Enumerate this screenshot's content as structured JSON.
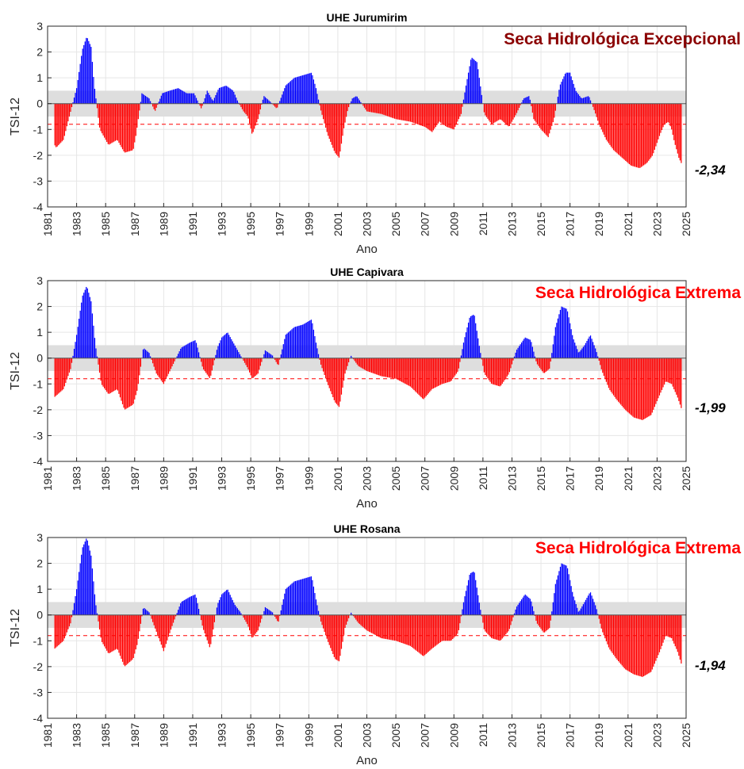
{
  "colors": {
    "positive": "#0000ff",
    "negative": "#ff0000",
    "neutral_band": "#dedede",
    "threshold_line": "#ff0000",
    "label_excepcional": "#8b0000",
    "label_extrema": "#ff0000"
  },
  "chart_data": [
    {
      "type": "bar",
      "title": "UHE Jurumirim",
      "xlabel": "Ano",
      "ylabel": "TSI-12",
      "xlim": [
        1981,
        2025
      ],
      "ylim": [
        -4,
        3
      ],
      "xticks": [
        "1981",
        "1983",
        "1985",
        "1987",
        "1989",
        "1991",
        "1993",
        "1995",
        "1997",
        "1999",
        "2001",
        "2003",
        "2005",
        "2007",
        "2009",
        "2011",
        "2013",
        "2015",
        "2017",
        "2019",
        "2021",
        "2023",
        "2025"
      ],
      "yticks": [
        "3",
        "2",
        "1",
        "0",
        "-1",
        "-2",
        "-3",
        "-4"
      ],
      "grid": true,
      "neutral_band": [
        -0.5,
        0.5
      ],
      "threshold": -0.8,
      "drought_label": "Seca Hidrológica Excepcional",
      "drought_label_color": "#8b0000",
      "final_value_label": "-2,34",
      "series_keyframes": {
        "x": [
          1981.0,
          1981.6,
          1982.1,
          1982.5,
          1983.0,
          1983.4,
          1983.7,
          1984.0,
          1984.2,
          1984.6,
          1985.2,
          1985.8,
          1986.3,
          1986.9,
          1987.1,
          1987.5,
          1988.0,
          1988.4,
          1988.9,
          1989.4,
          1990.0,
          1990.6,
          1991.1,
          1991.6,
          1992.0,
          1992.4,
          1992.8,
          1993.3,
          1993.8,
          1994.1,
          1994.5,
          1994.8,
          1995.1,
          1995.5,
          1995.9,
          1996.3,
          1996.8,
          1997.4,
          1998.0,
          1998.6,
          1999.2,
          1999.5,
          1999.8,
          2000.3,
          2000.8,
          2001.1,
          2001.4,
          2001.7,
          2002.0,
          2002.3,
          2003.0,
          2004.0,
          2005.0,
          2006.0,
          2007.0,
          2007.5,
          2008.0,
          2008.5,
          2009.0,
          2009.5,
          2009.8,
          2010.2,
          2010.6,
          2010.9,
          2011.1,
          2011.6,
          2012.2,
          2012.8,
          2013.3,
          2013.8,
          2014.2,
          2014.5,
          2015.0,
          2015.5,
          2015.9,
          2016.3,
          2016.7,
          2017.0,
          2017.4,
          2017.8,
          2018.3,
          2018.7,
          2019.0,
          2019.5,
          2020.0,
          2020.6,
          2021.2,
          2021.8,
          2022.3,
          2022.7,
          2023.2,
          2023.5,
          2023.8,
          2024.0,
          2024.2,
          2024.5,
          2024.7
        ],
        "y": [
          -1.2,
          -1.7,
          -1.4,
          -0.5,
          0.6,
          2.1,
          2.6,
          2.2,
          0.8,
          -1.0,
          -1.6,
          -1.4,
          -1.9,
          -1.8,
          -1.2,
          0.4,
          0.2,
          -0.3,
          0.4,
          0.5,
          0.6,
          0.4,
          0.4,
          -0.2,
          0.5,
          0.1,
          0.6,
          0.7,
          0.5,
          0.1,
          -0.3,
          -0.5,
          -1.2,
          -0.6,
          0.3,
          0.1,
          -0.2,
          0.7,
          1.0,
          1.1,
          1.2,
          0.6,
          -0.2,
          -1.2,
          -1.9,
          -2.1,
          -1.0,
          -0.2,
          0.2,
          0.3,
          -0.3,
          -0.4,
          -0.6,
          -0.7,
          -0.9,
          -1.1,
          -0.7,
          -0.9,
          -1.0,
          -0.4,
          0.6,
          1.8,
          1.6,
          0.4,
          -0.4,
          -0.8,
          -0.6,
          -0.9,
          -0.4,
          0.2,
          0.3,
          -0.6,
          -1.0,
          -1.3,
          -0.6,
          0.7,
          1.2,
          1.2,
          0.5,
          0.2,
          0.3,
          -0.3,
          -0.8,
          -1.4,
          -1.8,
          -2.1,
          -2.4,
          -2.5,
          -2.3,
          -2.0,
          -1.2,
          -0.8,
          -0.7,
          -1.0,
          -1.5,
          -2.1,
          -2.34
        ]
      }
    },
    {
      "type": "bar",
      "title": "UHE Capivara",
      "xlabel": "Ano",
      "ylabel": "TSI-12",
      "xlim": [
        1981,
        2025
      ],
      "ylim": [
        -4,
        3
      ],
      "xticks": [
        "1981",
        "1983",
        "1985",
        "1987",
        "1989",
        "1991",
        "1993",
        "1995",
        "1997",
        "1999",
        "2001",
        "2003",
        "2005",
        "2007",
        "2009",
        "2011",
        "2013",
        "2015",
        "2017",
        "2019",
        "2021",
        "2023",
        "2025"
      ],
      "yticks": [
        "3",
        "2",
        "1",
        "0",
        "-1",
        "-2",
        "-3",
        "-4"
      ],
      "grid": true,
      "neutral_band": [
        -0.5,
        0.5
      ],
      "threshold": -0.8,
      "drought_label": "Seca Hidrológica Extrema",
      "drought_label_color": "#ff0000",
      "final_value_label": "-1,99",
      "series_keyframes": {
        "x": [
          1981.0,
          1981.5,
          1982.1,
          1982.6,
          1983.0,
          1983.4,
          1983.7,
          1984.0,
          1984.3,
          1984.7,
          1985.2,
          1985.8,
          1986.3,
          1986.9,
          1987.2,
          1987.6,
          1988.0,
          1988.5,
          1989.0,
          1989.6,
          1990.2,
          1990.8,
          1991.2,
          1991.7,
          1992.2,
          1992.7,
          1993.0,
          1993.4,
          1993.9,
          1994.3,
          1994.8,
          1995.1,
          1995.5,
          1996.0,
          1996.5,
          1996.9,
          1997.4,
          1998.0,
          1998.6,
          1999.2,
          1999.5,
          1999.8,
          2000.3,
          2000.8,
          2001.1,
          2001.5,
          2001.9,
          2002.4,
          2003.0,
          2004.0,
          2005.0,
          2006.0,
          2006.9,
          2007.5,
          2008.2,
          2008.8,
          2009.3,
          2009.7,
          2010.1,
          2010.4,
          2010.8,
          2011.1,
          2011.6,
          2012.2,
          2012.8,
          2013.3,
          2013.9,
          2014.3,
          2014.7,
          2015.2,
          2015.6,
          2016.0,
          2016.4,
          2016.8,
          2017.2,
          2017.6,
          2018.0,
          2018.4,
          2018.8,
          2019.2,
          2019.7,
          2020.2,
          2020.8,
          2021.4,
          2022.0,
          2022.6,
          2023.2,
          2023.6,
          2024.0,
          2024.4,
          2024.7
        ],
        "y": [
          -1.0,
          -1.5,
          -1.2,
          -0.4,
          0.9,
          2.4,
          2.8,
          2.2,
          0.5,
          -1.0,
          -1.4,
          -1.2,
          -2.0,
          -1.8,
          -1.2,
          0.4,
          0.2,
          -0.6,
          -1.0,
          -0.3,
          0.4,
          0.6,
          0.7,
          -0.4,
          -0.8,
          0.4,
          0.8,
          1.0,
          0.5,
          0.1,
          -0.4,
          -0.8,
          -0.6,
          0.3,
          0.1,
          -0.3,
          0.9,
          1.2,
          1.3,
          1.5,
          0.6,
          -0.2,
          -1.0,
          -1.7,
          -1.9,
          -0.6,
          0.1,
          -0.3,
          -0.5,
          -0.7,
          -0.8,
          -1.1,
          -1.6,
          -1.2,
          -1.0,
          -0.9,
          -0.5,
          0.7,
          1.6,
          1.7,
          0.3,
          -0.6,
          -1.0,
          -1.1,
          -0.6,
          0.3,
          0.8,
          0.7,
          -0.2,
          -0.6,
          -0.4,
          1.2,
          2.0,
          1.9,
          0.8,
          0.2,
          0.5,
          0.9,
          0.3,
          -0.5,
          -1.2,
          -1.6,
          -2.0,
          -2.3,
          -2.4,
          -2.2,
          -1.4,
          -0.9,
          -1.0,
          -1.5,
          -1.99
        ]
      }
    },
    {
      "type": "bar",
      "title": "UHE Rosana",
      "xlabel": "Ano",
      "ylabel": "TSI-12",
      "xlim": [
        1981,
        2025
      ],
      "ylim": [
        -4,
        3
      ],
      "xticks": [
        "1981",
        "1983",
        "1985",
        "1987",
        "1989",
        "1991",
        "1993",
        "1995",
        "1997",
        "1999",
        "2001",
        "2003",
        "2005",
        "2007",
        "2009",
        "2011",
        "2013",
        "2015",
        "2017",
        "2019",
        "2021",
        "2023",
        "2025"
      ],
      "yticks": [
        "3",
        "2",
        "1",
        "0",
        "-1",
        "-2",
        "-3",
        "-4"
      ],
      "grid": true,
      "neutral_band": [
        -0.5,
        0.5
      ],
      "threshold": -0.8,
      "drought_label": "Seca Hidrológica Extrema",
      "drought_label_color": "#ff0000",
      "final_value_label": "-1,94",
      "series_keyframes": {
        "x": [
          1981.0,
          1981.5,
          1982.1,
          1982.6,
          1983.0,
          1983.4,
          1983.7,
          1984.0,
          1984.3,
          1984.7,
          1985.2,
          1985.8,
          1986.3,
          1986.9,
          1987.2,
          1987.6,
          1988.0,
          1988.6,
          1989.0,
          1989.6,
          1990.2,
          1990.8,
          1991.2,
          1991.7,
          1992.2,
          1992.7,
          1993.0,
          1993.4,
          1993.9,
          1994.3,
          1994.8,
          1995.1,
          1995.5,
          1996.0,
          1996.5,
          1996.9,
          1997.4,
          1998.0,
          1998.6,
          1999.2,
          1999.5,
          1999.8,
          2000.3,
          2000.8,
          2001.1,
          2001.5,
          2001.9,
          2002.4,
          2003.0,
          2004.0,
          2005.0,
          2006.0,
          2006.9,
          2007.5,
          2008.2,
          2008.8,
          2009.3,
          2009.7,
          2010.1,
          2010.4,
          2010.8,
          2011.1,
          2011.6,
          2012.2,
          2012.8,
          2013.3,
          2013.9,
          2014.3,
          2014.7,
          2015.2,
          2015.6,
          2016.0,
          2016.4,
          2016.8,
          2017.2,
          2017.6,
          2018.0,
          2018.4,
          2018.8,
          2019.2,
          2019.7,
          2020.2,
          2020.8,
          2021.4,
          2022.0,
          2022.6,
          2023.2,
          2023.6,
          2024.0,
          2024.4,
          2024.7
        ],
        "y": [
          -0.9,
          -1.3,
          -1.0,
          -0.3,
          1.0,
          2.6,
          3.0,
          2.3,
          0.5,
          -1.0,
          -1.5,
          -1.3,
          -2.0,
          -1.7,
          -1.1,
          0.3,
          0.1,
          -0.8,
          -1.4,
          -0.4,
          0.5,
          0.7,
          0.8,
          -0.5,
          -1.3,
          0.4,
          0.8,
          1.0,
          0.4,
          0.1,
          -0.4,
          -0.9,
          -0.6,
          0.3,
          0.1,
          -0.3,
          1.0,
          1.3,
          1.4,
          1.5,
          0.6,
          -0.2,
          -1.0,
          -1.7,
          -1.8,
          -0.5,
          0.1,
          -0.3,
          -0.6,
          -0.9,
          -1.0,
          -1.2,
          -1.6,
          -1.3,
          -1.0,
          -1.0,
          -0.7,
          0.6,
          1.6,
          1.7,
          0.3,
          -0.6,
          -0.9,
          -1.0,
          -0.6,
          0.3,
          0.8,
          0.6,
          -0.3,
          -0.7,
          -0.5,
          1.2,
          2.0,
          1.9,
          0.8,
          0.1,
          0.5,
          0.9,
          0.3,
          -0.6,
          -1.3,
          -1.7,
          -2.1,
          -2.3,
          -2.4,
          -2.2,
          -1.4,
          -0.8,
          -0.9,
          -1.4,
          -1.94
        ]
      }
    }
  ]
}
